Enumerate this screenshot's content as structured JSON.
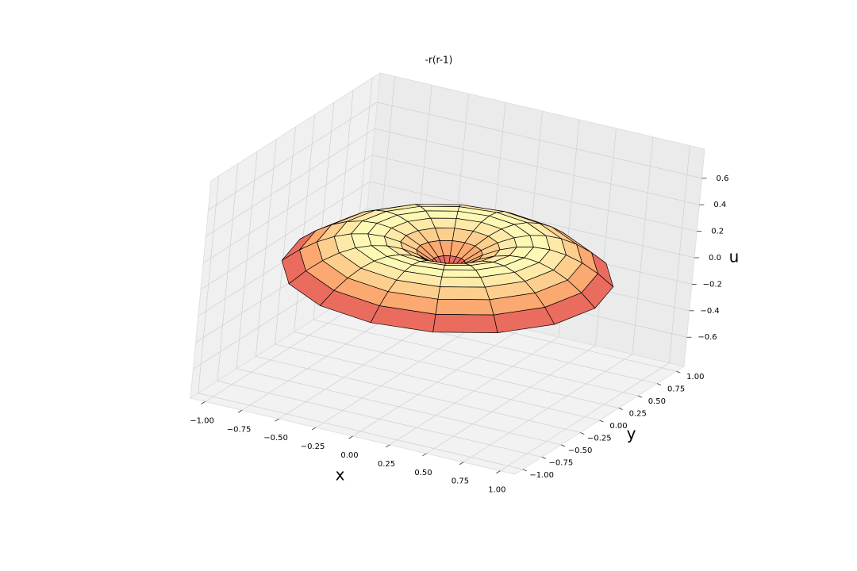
{
  "chart_data": {
    "type": "surface",
    "title": "-r(r-1)",
    "xlabel": "x",
    "ylabel": "y",
    "zlabel": "u",
    "xlim": [
      -1.1,
      1.1
    ],
    "ylim": [
      -1.1,
      1.1
    ],
    "zlim": [
      -0.82,
      0.82
    ],
    "xticks": [
      {
        "value": -1,
        "label": "−1.00"
      },
      {
        "value": -0.75,
        "label": "−0.75"
      },
      {
        "value": -0.5,
        "label": "−0.50"
      },
      {
        "value": -0.25,
        "label": "−0.25"
      },
      {
        "value": 0,
        "label": "0.00"
      },
      {
        "value": 0.25,
        "label": "0.25"
      },
      {
        "value": 0.5,
        "label": "0.50"
      },
      {
        "value": 0.75,
        "label": "0.75"
      },
      {
        "value": 1,
        "label": "1.00"
      }
    ],
    "yticks": [
      {
        "value": -1,
        "label": "−1.00"
      },
      {
        "value": -0.75,
        "label": "−0.75"
      },
      {
        "value": -0.5,
        "label": "−0.50"
      },
      {
        "value": -0.25,
        "label": "−0.25"
      },
      {
        "value": 0,
        "label": "0.00"
      },
      {
        "value": 0.25,
        "label": "0.25"
      },
      {
        "value": 0.5,
        "label": "0.50"
      },
      {
        "value": 0.75,
        "label": "0.75"
      },
      {
        "value": 1,
        "label": "1.00"
      }
    ],
    "zticks": [
      {
        "value": -0.6,
        "label": "−0.6"
      },
      {
        "value": -0.4,
        "label": "−0.4"
      },
      {
        "value": -0.2,
        "label": "−0.2"
      },
      {
        "value": 0,
        "label": "0.0"
      },
      0.2,
      0.4,
      0.6
    ],
    "r": [
      0,
      0.1,
      0.2,
      0.3,
      0.4,
      0.5,
      0.6,
      0.7,
      0.8,
      0.9,
      1.0
    ],
    "values": [
      0,
      0.09,
      0.16,
      0.21,
      0.24,
      0.25,
      0.24,
      0.21,
      0.16,
      0.09,
      0
    ],
    "colormap": [
      "#d9455f",
      "#f88d5f",
      "#fdc283",
      "#fefbb8"
    ],
    "grid": true
  }
}
